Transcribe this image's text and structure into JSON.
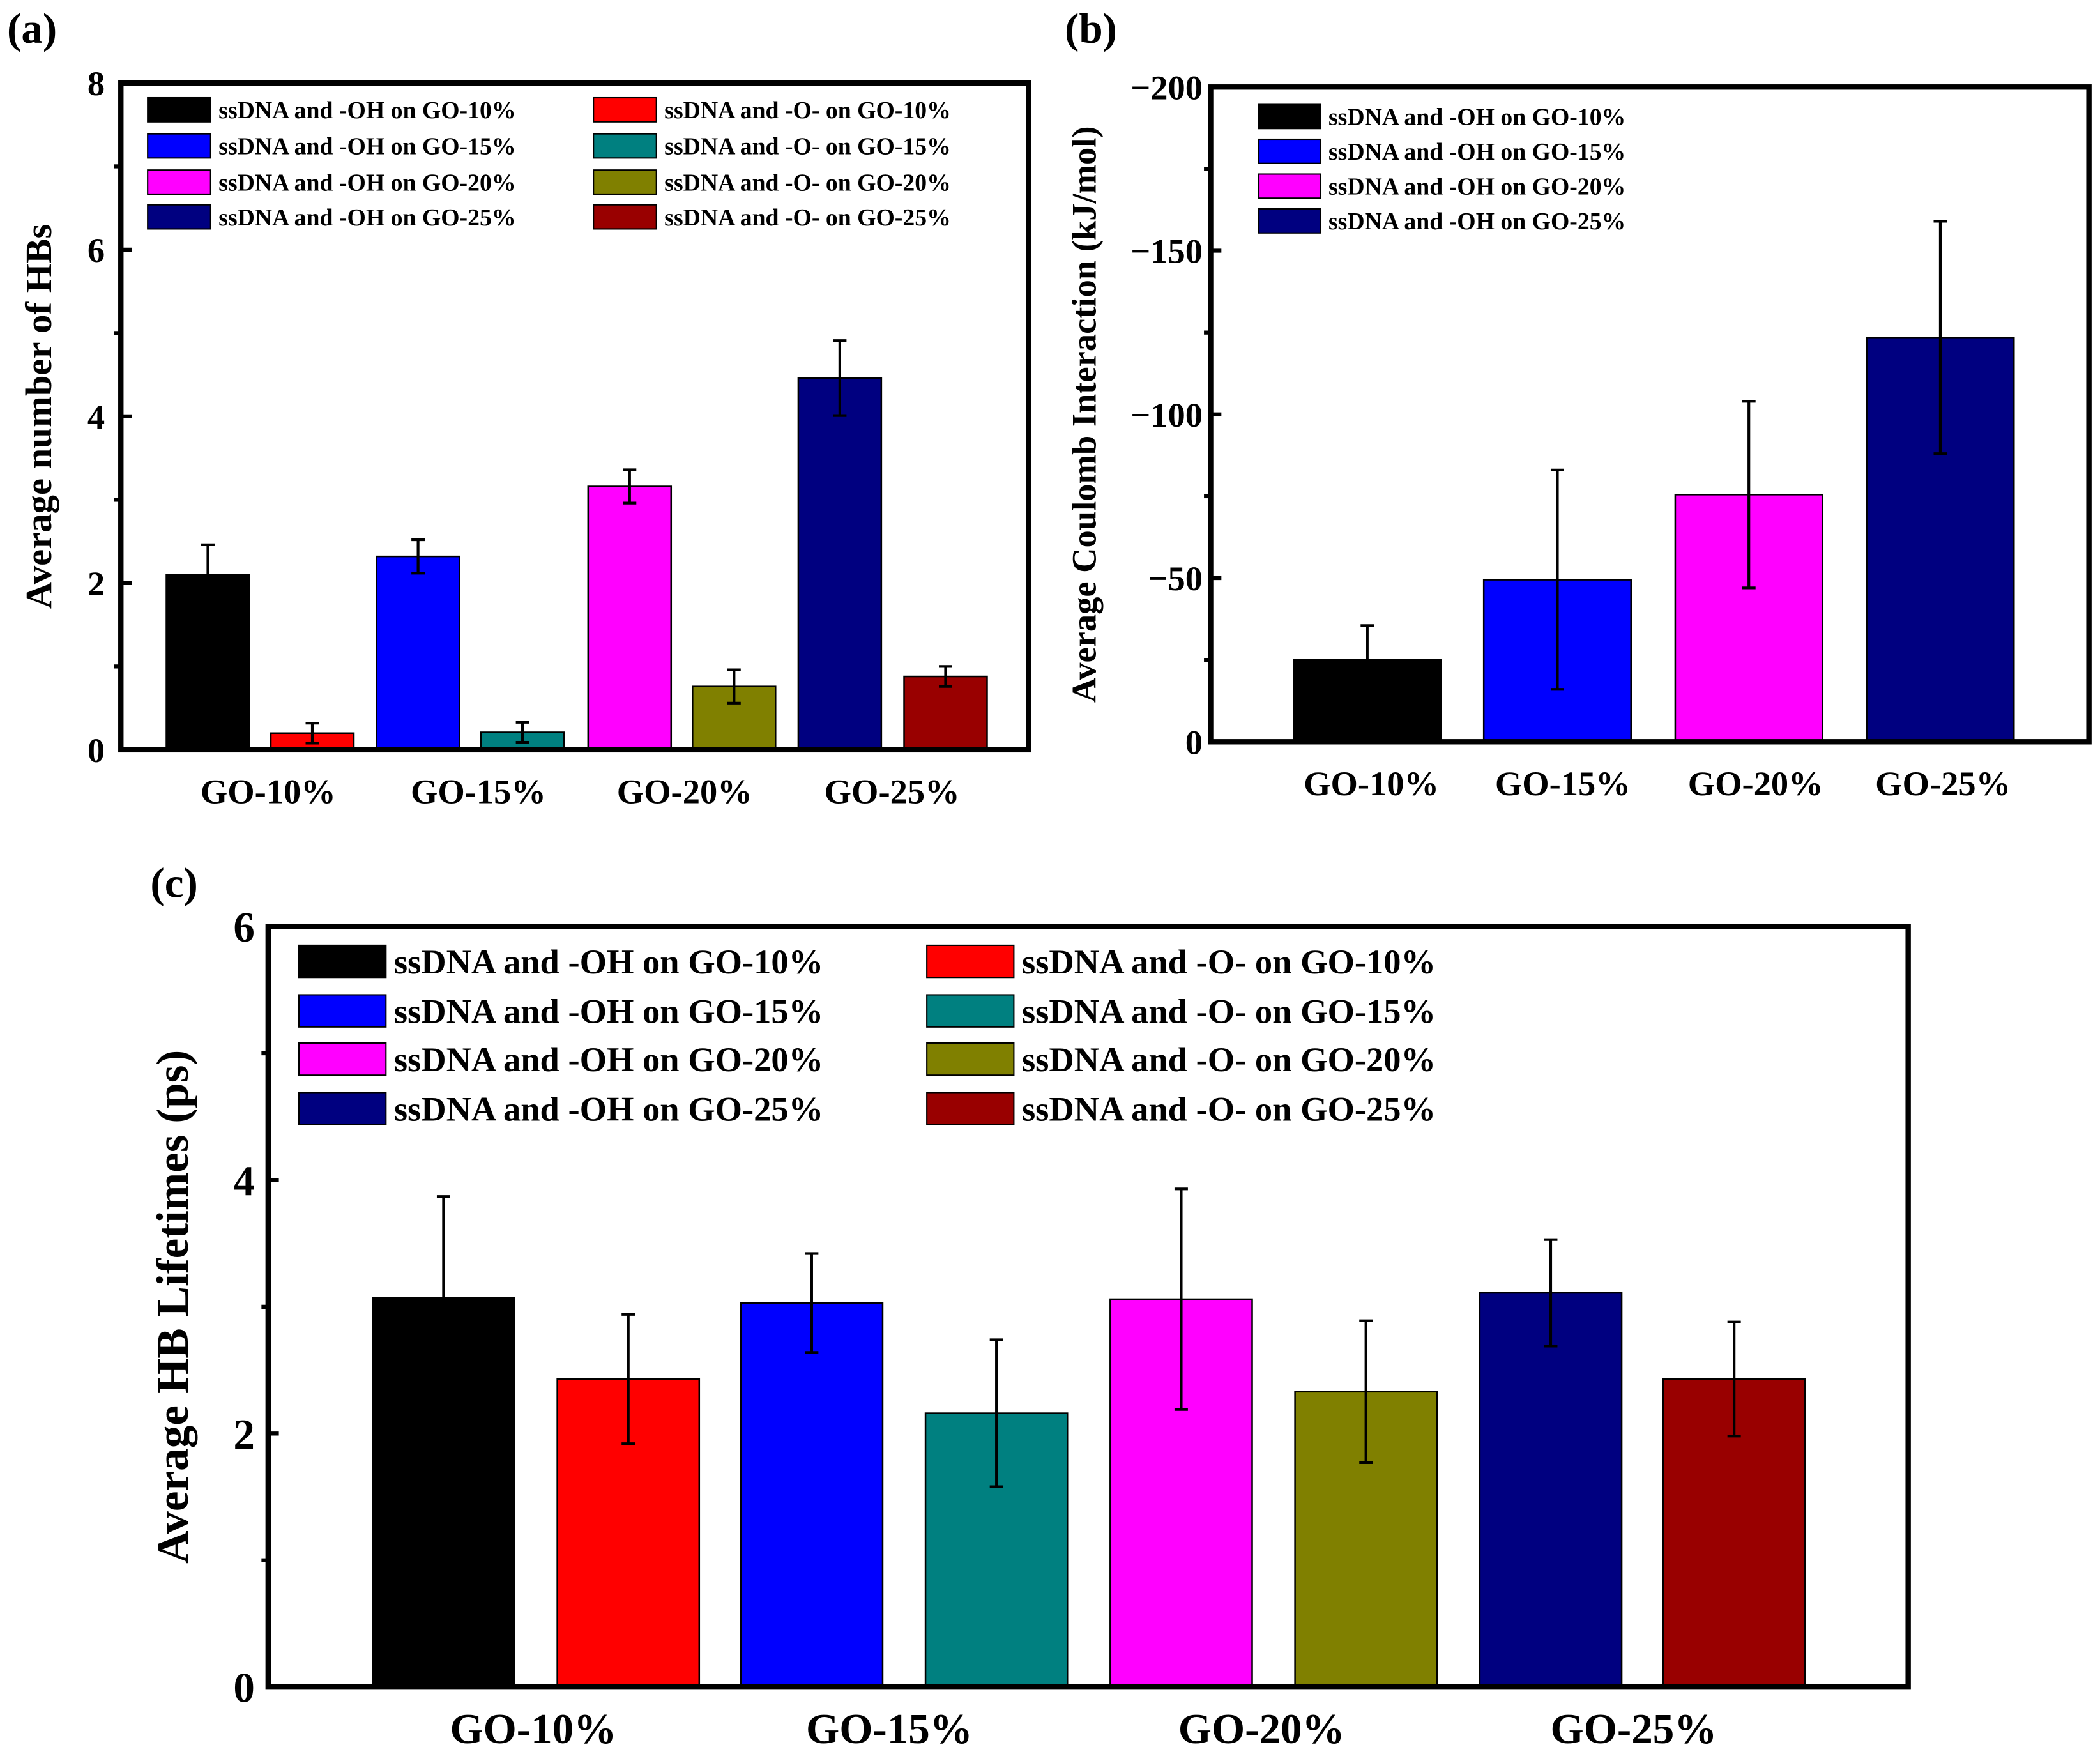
{
  "panel_labels": [
    "(a)",
    "(b)",
    "(c)"
  ],
  "colors": {
    "oh_10": "#000000",
    "o_10": "#ff0000",
    "oh_15": "#0000ff",
    "o_15": "#008080",
    "oh_20": "#ff00ff",
    "o_20": "#808000",
    "oh_25": "#000080",
    "o_25": "#990000"
  },
  "chart_data": [
    {
      "type": "bar",
      "title": "",
      "xlabel": "",
      "ylabel": "Average number of HBs",
      "categories": [
        "GO-10%",
        "GO-15%",
        "GO-20%",
        "GO-25%"
      ],
      "ylim": [
        0,
        8
      ],
      "yticks": [
        "0",
        "2",
        "4",
        "6",
        "8"
      ],
      "ytick_values": [
        0,
        2,
        4,
        6,
        8
      ],
      "grid": false,
      "legend_placement": "top",
      "series": [
        {
          "name": "ssDNA and -OH on GO-10%",
          "color": "#000000",
          "values": [
            2.1,
            null,
            null,
            null
          ],
          "errors": [
            0.36,
            null,
            null,
            null
          ]
        },
        {
          "name": "ssDNA and -O- on GO-10%",
          "color": "#ff0000",
          "values": [
            0.2,
            null,
            null,
            null
          ],
          "errors": [
            0.12,
            null,
            null,
            null
          ]
        },
        {
          "name": "ssDNA and -OH on GO-15%",
          "color": "#0000ff",
          "values": [
            null,
            2.32,
            null,
            null
          ],
          "errors": [
            null,
            0.2,
            null,
            null
          ]
        },
        {
          "name": "ssDNA and -O- on GO-15%",
          "color": "#008080",
          "values": [
            null,
            0.21,
            null,
            null
          ],
          "errors": [
            null,
            0.12,
            null,
            null
          ]
        },
        {
          "name": "ssDNA and -OH on GO-20%",
          "color": "#ff00ff",
          "values": [
            null,
            null,
            3.16,
            null
          ],
          "errors": [
            null,
            null,
            0.2,
            null
          ]
        },
        {
          "name": "ssDNA and -O- on GO-20%",
          "color": "#808000",
          "values": [
            null,
            null,
            0.76,
            null
          ],
          "errors": [
            null,
            null,
            0.2,
            null
          ]
        },
        {
          "name": "ssDNA and -OH on GO-25%",
          "color": "#000080",
          "values": [
            null,
            null,
            null,
            4.46
          ],
          "errors": [
            null,
            null,
            null,
            0.45
          ]
        },
        {
          "name": "ssDNA and -O- on GO-25%",
          "color": "#990000",
          "values": [
            null,
            null,
            null,
            0.88
          ],
          "errors": [
            null,
            null,
            null,
            0.12
          ]
        }
      ]
    },
    {
      "type": "bar",
      "title": "",
      "xlabel": "",
      "ylabel": "Average Coulomb Interaction (kJ/mol)",
      "categories": [
        "GO-10%",
        "GO-15%",
        "GO-20%",
        "GO-25%"
      ],
      "ylim": [
        0,
        -200
      ],
      "yticks": [
        "0",
        "−50",
        "−100",
        "−150",
        "−200"
      ],
      "ytick_values": [
        0,
        -50,
        -100,
        -150,
        -200
      ],
      "grid": false,
      "legend_placement": "top-left",
      "series": [
        {
          "name": "ssDNA and -OH on GO-10%",
          "color": "#000000",
          "values": [
            -25,
            null,
            null,
            null
          ],
          "errors": [
            10.5,
            null,
            null,
            null
          ]
        },
        {
          "name": "ssDNA and -OH on GO-15%",
          "color": "#0000ff",
          "values": [
            null,
            -49.5,
            null,
            null
          ],
          "errors": [
            null,
            33.5,
            null,
            null
          ]
        },
        {
          "name": "ssDNA and -OH on GO-20%",
          "color": "#ff00ff",
          "values": [
            null,
            null,
            -75.5,
            null
          ],
          "errors": [
            null,
            null,
            28.5,
            null
          ]
        },
        {
          "name": "ssDNA and -OH on GO-25%",
          "color": "#000080",
          "values": [
            null,
            null,
            null,
            -123.5
          ],
          "errors": [
            null,
            null,
            null,
            35.5
          ]
        }
      ]
    },
    {
      "type": "bar",
      "title": "",
      "xlabel": "",
      "ylabel": "Average HB Lifetimes (ps)",
      "categories": [
        "GO-10%",
        "GO-15%",
        "GO-20%",
        "GO-25%"
      ],
      "ylim": [
        0,
        6
      ],
      "yticks": [
        "0",
        "2",
        "4",
        "6"
      ],
      "ytick_values": [
        0,
        2,
        4,
        6
      ],
      "grid": false,
      "legend_placement": "top-left",
      "series": [
        {
          "name": "ssDNA and -OH on GO-10%",
          "color": "#000000",
          "values": [
            3.07,
            null,
            null,
            null
          ],
          "errors": [
            0.8,
            null,
            null,
            null
          ]
        },
        {
          "name": "ssDNA and -O- on GO-10%",
          "color": "#ff0000",
          "values": [
            2.43,
            null,
            null,
            null
          ],
          "errors": [
            0.51,
            null,
            null,
            null
          ]
        },
        {
          "name": "ssDNA and -OH on GO-15%",
          "color": "#0000ff",
          "values": [
            null,
            3.03,
            null,
            null
          ],
          "errors": [
            null,
            0.39,
            null,
            null
          ]
        },
        {
          "name": "ssDNA and -O- on GO-15%",
          "color": "#008080",
          "values": [
            null,
            2.16,
            null,
            null
          ],
          "errors": [
            null,
            0.58,
            null,
            null
          ]
        },
        {
          "name": "ssDNA and -OH on GO-20%",
          "color": "#ff00ff",
          "values": [
            null,
            null,
            3.06,
            null
          ],
          "errors": [
            null,
            null,
            0.87,
            null
          ]
        },
        {
          "name": "ssDNA and -O- on GO-20%",
          "color": "#808000",
          "values": [
            null,
            null,
            2.33,
            null
          ],
          "errors": [
            null,
            null,
            0.56,
            null
          ]
        },
        {
          "name": "ssDNA and -OH on GO-25%",
          "color": "#000080",
          "values": [
            null,
            null,
            null,
            3.11
          ],
          "errors": [
            null,
            null,
            null,
            0.42
          ]
        },
        {
          "name": "ssDNA and -O- on GO-25%",
          "color": "#990000",
          "values": [
            null,
            null,
            null,
            2.43
          ],
          "errors": [
            null,
            null,
            null,
            0.45
          ]
        }
      ]
    }
  ]
}
